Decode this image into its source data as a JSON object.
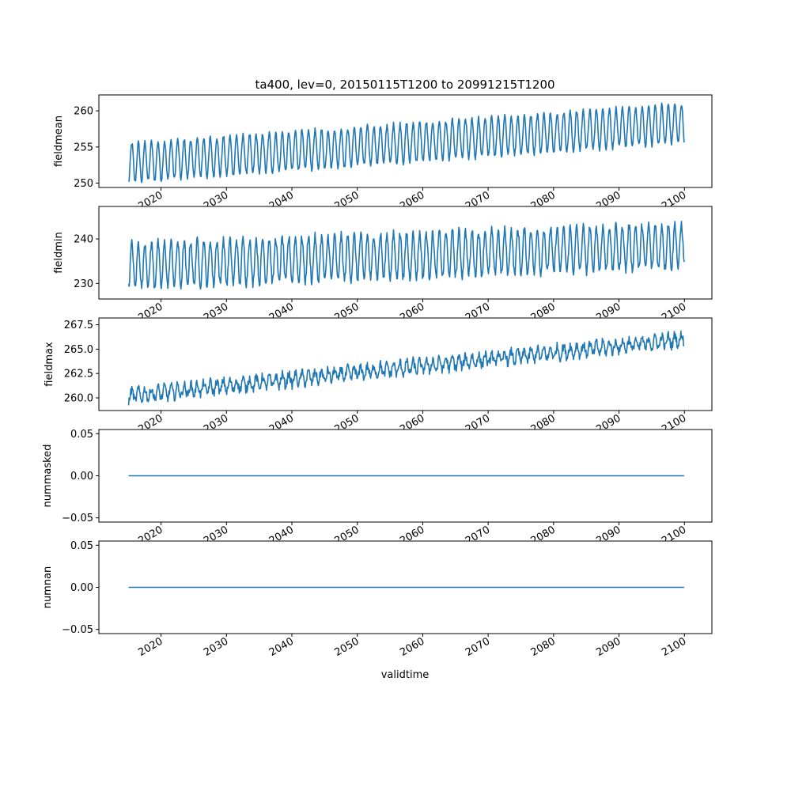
{
  "figure": {
    "title": "ta400, lev=0, 20150115T1200 to 20991215T1200",
    "xlabel": "validtime"
  },
  "colors": {
    "series": "#1f77b4",
    "axes": "#000000",
    "background": "#ffffff"
  },
  "chart_data": [
    {
      "type": "line",
      "ylabel": "fieldmean",
      "xlim": [
        2010.5,
        2104.2
      ],
      "ylim": [
        249.4,
        262.2
      ],
      "yticks": [
        250,
        255,
        260
      ],
      "ytick_labels": [
        "250",
        "255",
        "260"
      ],
      "xticks": [
        2020,
        2030,
        2040,
        2050,
        2060,
        2070,
        2080,
        2090,
        2100
      ],
      "xtick_labels": [
        "2020",
        "2030",
        "2040",
        "2050",
        "2060",
        "2070",
        "2080",
        "2090",
        "2100"
      ],
      "series": [
        {
          "x_start": 2015.04,
          "x_end": 2099.96,
          "step_years": 0.0833333,
          "trend_start": 252.8,
          "trend_end": 258.3,
          "seasonal_amplitude": 2.7,
          "noise": 0.35,
          "x_sample": [
            2015,
            2030,
            2045,
            2060,
            2075,
            2090,
            2100
          ],
          "y_sample": [
            253.0,
            253.6,
            254.6,
            255.6,
            256.5,
            257.7,
            258.5
          ]
        }
      ]
    },
    {
      "type": "line",
      "ylabel": "fieldmin",
      "xlim": [
        2010.5,
        2104.2
      ],
      "ylim": [
        226.5,
        247.3
      ],
      "yticks": [
        230,
        240
      ],
      "ytick_labels": [
        "230",
        "240"
      ],
      "xticks": [
        2020,
        2030,
        2040,
        2050,
        2060,
        2070,
        2080,
        2090,
        2100
      ],
      "xtick_labels": [
        "2020",
        "2030",
        "2040",
        "2050",
        "2060",
        "2070",
        "2080",
        "2090",
        "2100"
      ],
      "series": [
        {
          "x_start": 2015.04,
          "x_end": 2099.96,
          "step_years": 0.0833333,
          "trend_start": 234.0,
          "trend_end": 238.5,
          "seasonal_amplitude": 5.0,
          "noise": 1.0,
          "x_sample": [
            2015,
            2030,
            2045,
            2060,
            2075,
            2090,
            2100
          ],
          "y_sample": [
            234.0,
            234.8,
            235.8,
            236.6,
            237.4,
            238.2,
            238.7
          ]
        }
      ]
    },
    {
      "type": "line",
      "ylabel": "fieldmax",
      "xlim": [
        2010.5,
        2104.2
      ],
      "ylim": [
        258.7,
        268.2
      ],
      "yticks": [
        260.0,
        262.5,
        265.0,
        267.5
      ],
      "ytick_labels": [
        "260.0",
        "262.5",
        "265.0",
        "267.5"
      ],
      "xticks": [
        2020,
        2030,
        2040,
        2050,
        2060,
        2070,
        2080,
        2090,
        2100
      ],
      "xtick_labels": [
        "2020",
        "2030",
        "2040",
        "2050",
        "2060",
        "2070",
        "2080",
        "2090",
        "2100"
      ],
      "series": [
        {
          "x_start": 2015.04,
          "x_end": 2099.96,
          "step_years": 0.0833333,
          "trend_start": 260.2,
          "trend_end": 266.0,
          "seasonal_amplitude": 0.6,
          "noise": 0.45,
          "x_sample": [
            2015,
            2030,
            2045,
            2060,
            2075,
            2090,
            2100
          ],
          "y_sample": [
            260.3,
            260.9,
            261.8,
            263.3,
            264.0,
            265.3,
            266.1
          ]
        }
      ]
    },
    {
      "type": "line",
      "ylabel": "nummasked",
      "xlim": [
        2010.5,
        2104.2
      ],
      "ylim": [
        -0.055,
        0.055
      ],
      "yticks": [
        0.05,
        0.0,
        -0.05
      ],
      "ytick_labels": [
        "0.05",
        "0.00",
        "−0.05"
      ],
      "xticks": [
        2020,
        2030,
        2040,
        2050,
        2060,
        2070,
        2080,
        2090,
        2100
      ],
      "xtick_labels": [
        "2020",
        "2030",
        "2040",
        "2050",
        "2060",
        "2070",
        "2080",
        "2090",
        "2100"
      ],
      "series": [
        {
          "x_start": 2015.04,
          "x_end": 2099.96,
          "step_years": 0.0833333,
          "trend_start": 0,
          "trend_end": 0,
          "seasonal_amplitude": 0,
          "noise": 0,
          "x_sample": [
            2015,
            2100
          ],
          "y_sample": [
            0,
            0
          ]
        }
      ]
    },
    {
      "type": "line",
      "ylabel": "numnan",
      "xlim": [
        2010.5,
        2104.2
      ],
      "ylim": [
        -0.055,
        0.055
      ],
      "yticks": [
        0.05,
        0.0,
        -0.05
      ],
      "ytick_labels": [
        "0.05",
        "0.00",
        "−0.05"
      ],
      "xticks": [
        2020,
        2030,
        2040,
        2050,
        2060,
        2070,
        2080,
        2090,
        2100
      ],
      "xtick_labels": [
        "2020",
        "2030",
        "2040",
        "2050",
        "2060",
        "2070",
        "2080",
        "2090",
        "2100"
      ],
      "series": [
        {
          "x_start": 2015.04,
          "x_end": 2099.96,
          "step_years": 0.0833333,
          "trend_start": 0,
          "trend_end": 0,
          "seasonal_amplitude": 0,
          "noise": 0,
          "x_sample": [
            2015,
            2100
          ],
          "y_sample": [
            0,
            0
          ]
        }
      ]
    }
  ]
}
